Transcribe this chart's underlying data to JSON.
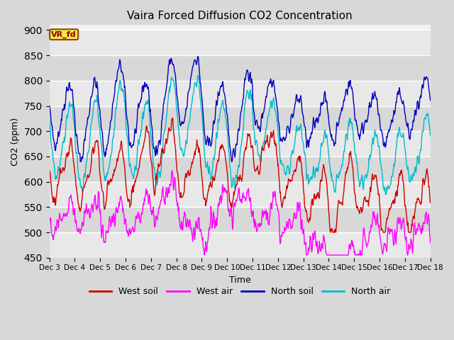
{
  "title": "Vaira Forced Diffusion CO2 Concentration",
  "xlabel": "Time",
  "ylabel": "CO2 (ppm)",
  "ylim": [
    450,
    910
  ],
  "yticks": [
    450,
    500,
    550,
    600,
    650,
    700,
    750,
    800,
    850,
    900
  ],
  "legend_label": "VR_fd",
  "series_labels": [
    "West soil",
    "West air",
    "North soil",
    "North air"
  ],
  "series_colors": [
    "#cc0000",
    "#ff00ff",
    "#0000bb",
    "#00bbcc"
  ],
  "n_points": 900,
  "x_start": 3.0,
  "x_end": 18.0,
  "x_tick_positions": [
    3,
    4,
    5,
    6,
    7,
    8,
    9,
    10,
    11,
    12,
    13,
    14,
    15,
    16,
    17,
    18
  ],
  "x_tick_labels": [
    "Dec 3",
    "Dec 4",
    "Dec 5",
    "Dec 6",
    "Dec 7",
    "Dec 8",
    "Dec 9",
    "Dec 10",
    "Dec 11",
    "Dec 12",
    "Dec 13",
    "Dec 14",
    "Dec 15",
    "Dec 16",
    "Dec 17",
    "Dec 18"
  ],
  "figsize": [
    6.4,
    4.8
  ],
  "dpi": 100
}
